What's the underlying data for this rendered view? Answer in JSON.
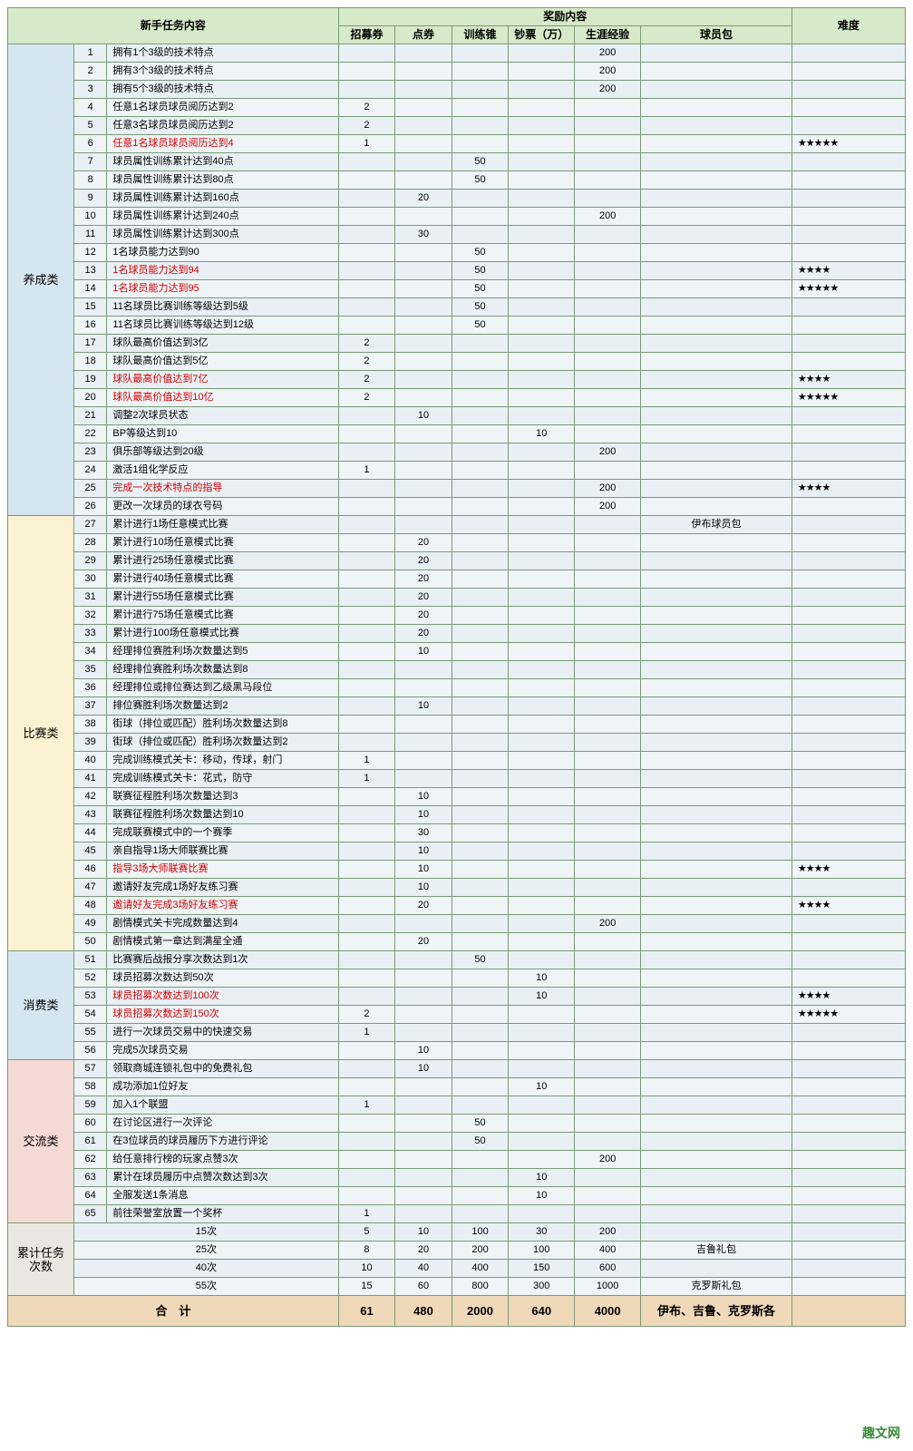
{
  "headers": {
    "task_content": "新手任务内容",
    "reward_content": "奖励内容",
    "difficulty": "难度",
    "cols": [
      "招募券",
      "点券",
      "训练锥",
      "钞票（万）",
      "生涯经验",
      "球员包"
    ]
  },
  "categories": [
    {
      "name": "养成类",
      "color": "cat-blue",
      "rows": [
        {
          "n": 1,
          "t": "拥有1个3级的技术特点",
          "v": [
            "",
            "",
            "",
            "",
            "200",
            ""
          ],
          "d": ""
        },
        {
          "n": 2,
          "t": "拥有3个3级的技术特点",
          "v": [
            "",
            "",
            "",
            "",
            "200",
            ""
          ],
          "d": ""
        },
        {
          "n": 3,
          "t": "拥有5个3级的技术特点",
          "v": [
            "",
            "",
            "",
            "",
            "200",
            ""
          ],
          "d": ""
        },
        {
          "n": 4,
          "t": "任意1名球员球员阅历达到2",
          "v": [
            "2",
            "",
            "",
            "",
            "",
            ""
          ],
          "d": ""
        },
        {
          "n": 5,
          "t": "任意3名球员球员阅历达到2",
          "v": [
            "2",
            "",
            "",
            "",
            "",
            ""
          ],
          "d": ""
        },
        {
          "n": 6,
          "t": "任意1名球员球员阅历达到4",
          "v": [
            "1",
            "",
            "",
            "",
            "",
            ""
          ],
          "d": "★★★★★",
          "red": true
        },
        {
          "n": 7,
          "t": "球员属性训练累计达到40点",
          "v": [
            "",
            "",
            "50",
            "",
            "",
            ""
          ],
          "d": ""
        },
        {
          "n": 8,
          "t": "球员属性训练累计达到80点",
          "v": [
            "",
            "",
            "50",
            "",
            "",
            ""
          ],
          "d": ""
        },
        {
          "n": 9,
          "t": "球员属性训练累计达到160点",
          "v": [
            "",
            "20",
            "",
            "",
            "",
            ""
          ],
          "d": ""
        },
        {
          "n": 10,
          "t": "球员属性训练累计达到240点",
          "v": [
            "",
            "",
            "",
            "",
            "200",
            ""
          ],
          "d": ""
        },
        {
          "n": 11,
          "t": "球员属性训练累计达到300点",
          "v": [
            "",
            "30",
            "",
            "",
            "",
            ""
          ],
          "d": ""
        },
        {
          "n": 12,
          "t": "1名球员能力达到90",
          "v": [
            "",
            "",
            "50",
            "",
            "",
            ""
          ],
          "d": ""
        },
        {
          "n": 13,
          "t": "1名球员能力达到94",
          "v": [
            "",
            "",
            "50",
            "",
            "",
            ""
          ],
          "d": "★★★★",
          "red": true
        },
        {
          "n": 14,
          "t": "1名球员能力达到95",
          "v": [
            "",
            "",
            "50",
            "",
            "",
            ""
          ],
          "d": "★★★★★",
          "red": true
        },
        {
          "n": 15,
          "t": "11名球员比赛训练等级达到5级",
          "v": [
            "",
            "",
            "50",
            "",
            "",
            ""
          ],
          "d": ""
        },
        {
          "n": 16,
          "t": "11名球员比赛训练等级达到12级",
          "v": [
            "",
            "",
            "50",
            "",
            "",
            ""
          ],
          "d": ""
        },
        {
          "n": 17,
          "t": "球队最高价值达到3亿",
          "v": [
            "2",
            "",
            "",
            "",
            "",
            ""
          ],
          "d": ""
        },
        {
          "n": 18,
          "t": "球队最高价值达到5亿",
          "v": [
            "2",
            "",
            "",
            "",
            "",
            ""
          ],
          "d": ""
        },
        {
          "n": 19,
          "t": "球队最高价值达到7亿",
          "v": [
            "2",
            "",
            "",
            "",
            "",
            ""
          ],
          "d": "★★★★",
          "red": true
        },
        {
          "n": 20,
          "t": "球队最高价值达到10亿",
          "v": [
            "2",
            "",
            "",
            "",
            "",
            ""
          ],
          "d": "★★★★★",
          "red": true
        },
        {
          "n": 21,
          "t": "调整2次球员状态",
          "v": [
            "",
            "10",
            "",
            "",
            "",
            ""
          ],
          "d": ""
        },
        {
          "n": 22,
          "t": "BP等级达到10",
          "v": [
            "",
            "",
            "",
            "10",
            "",
            ""
          ],
          "d": ""
        },
        {
          "n": 23,
          "t": "俱乐部等级达到20级",
          "v": [
            "",
            "",
            "",
            "",
            "200",
            ""
          ],
          "d": ""
        },
        {
          "n": 24,
          "t": "激活1组化学反应",
          "v": [
            "1",
            "",
            "",
            "",
            "",
            ""
          ],
          "d": ""
        },
        {
          "n": 25,
          "t": "完成一次技术特点的指导",
          "v": [
            "",
            "",
            "",
            "",
            "200",
            ""
          ],
          "d": "★★★★",
          "red": true
        },
        {
          "n": 26,
          "t": "更改一次球员的球衣号码",
          "v": [
            "",
            "",
            "",
            "",
            "200",
            ""
          ],
          "d": ""
        }
      ]
    },
    {
      "name": "比赛类",
      "color": "cat-yellow",
      "rows": [
        {
          "n": 27,
          "t": "累计进行1场任意模式比赛",
          "v": [
            "",
            "",
            "",
            "",
            "",
            "伊布球员包"
          ],
          "d": ""
        },
        {
          "n": 28,
          "t": "累计进行10场任意模式比赛",
          "v": [
            "",
            "20",
            "",
            "",
            "",
            ""
          ],
          "d": ""
        },
        {
          "n": 29,
          "t": "累计进行25场任意模式比赛",
          "v": [
            "",
            "20",
            "",
            "",
            "",
            ""
          ],
          "d": ""
        },
        {
          "n": 30,
          "t": "累计进行40场任意模式比赛",
          "v": [
            "",
            "20",
            "",
            "",
            "",
            ""
          ],
          "d": ""
        },
        {
          "n": 31,
          "t": "累计进行55场任意模式比赛",
          "v": [
            "",
            "20",
            "",
            "",
            "",
            ""
          ],
          "d": ""
        },
        {
          "n": 32,
          "t": "累计进行75场任意模式比赛",
          "v": [
            "",
            "20",
            "",
            "",
            "",
            ""
          ],
          "d": ""
        },
        {
          "n": 33,
          "t": "累计进行100场任意模式比赛",
          "v": [
            "",
            "20",
            "",
            "",
            "",
            ""
          ],
          "d": ""
        },
        {
          "n": 34,
          "t": "经理排位赛胜利场次数量达到5",
          "v": [
            "",
            "10",
            "",
            "",
            "",
            ""
          ],
          "d": ""
        },
        {
          "n": 35,
          "t": "经理排位赛胜利场次数量达到8",
          "v": [
            "",
            "",
            "",
            "",
            "",
            ""
          ],
          "d": ""
        },
        {
          "n": 36,
          "t": "经理排位或排位赛达到乙级黑马段位",
          "v": [
            "",
            "",
            "",
            "",
            "",
            ""
          ],
          "d": ""
        },
        {
          "n": 37,
          "t": "排位赛胜利场次数量达到2",
          "v": [
            "",
            "10",
            "",
            "",
            "",
            ""
          ],
          "d": ""
        },
        {
          "n": 38,
          "t": "街球（排位或匹配）胜利场次数量达到8",
          "v": [
            "",
            "",
            "",
            "",
            "",
            ""
          ],
          "d": ""
        },
        {
          "n": 39,
          "t": "街球（排位或匹配）胜利场次数量达到2",
          "v": [
            "",
            "",
            "",
            "",
            "",
            ""
          ],
          "d": ""
        },
        {
          "n": 40,
          "t": "完成训练模式关卡：移动，传球，射门",
          "v": [
            "1",
            "",
            "",
            "",
            "",
            ""
          ],
          "d": ""
        },
        {
          "n": 41,
          "t": "完成训练模式关卡：花式，防守",
          "v": [
            "1",
            "",
            "",
            "",
            "",
            ""
          ],
          "d": ""
        },
        {
          "n": 42,
          "t": "联赛征程胜利场次数量达到3",
          "v": [
            "",
            "10",
            "",
            "",
            "",
            ""
          ],
          "d": ""
        },
        {
          "n": 43,
          "t": "联赛征程胜利场次数量达到10",
          "v": [
            "",
            "10",
            "",
            "",
            "",
            ""
          ],
          "d": ""
        },
        {
          "n": 44,
          "t": "完成联赛模式中的一个赛季",
          "v": [
            "",
            "30",
            "",
            "",
            "",
            ""
          ],
          "d": ""
        },
        {
          "n": 45,
          "t": "亲自指导1场大师联赛比赛",
          "v": [
            "",
            "10",
            "",
            "",
            "",
            ""
          ],
          "d": ""
        },
        {
          "n": 46,
          "t": "指导3场大师联赛比赛",
          "v": [
            "",
            "10",
            "",
            "",
            "",
            ""
          ],
          "d": "★★★★",
          "red": true
        },
        {
          "n": 47,
          "t": "邀请好友完成1场好友练习赛",
          "v": [
            "",
            "10",
            "",
            "",
            "",
            ""
          ],
          "d": ""
        },
        {
          "n": 48,
          "t": "邀请好友完成3场好友练习赛",
          "v": [
            "",
            "20",
            "",
            "",
            "",
            ""
          ],
          "d": "★★★★",
          "red": true
        },
        {
          "n": 49,
          "t": "剧情模式关卡完成数量达到4",
          "v": [
            "",
            "",
            "",
            "",
            "200",
            ""
          ],
          "d": ""
        },
        {
          "n": 50,
          "t": "剧情模式第一章达到满星全通",
          "v": [
            "",
            "20",
            "",
            "",
            "",
            ""
          ],
          "d": ""
        }
      ]
    },
    {
      "name": "消费类",
      "color": "cat-blue",
      "rows": [
        {
          "n": 51,
          "t": "比赛赛后战报分享次数达到1次",
          "v": [
            "",
            "",
            "50",
            "",
            "",
            ""
          ],
          "d": ""
        },
        {
          "n": 52,
          "t": "球员招募次数达到50次",
          "v": [
            "",
            "",
            "",
            "10",
            "",
            ""
          ],
          "d": ""
        },
        {
          "n": 53,
          "t": "球员招募次数达到100次",
          "v": [
            "",
            "",
            "",
            "10",
            "",
            ""
          ],
          "d": "★★★★",
          "red": true
        },
        {
          "n": 54,
          "t": "球员招募次数达到150次",
          "v": [
            "2",
            "",
            "",
            "",
            "",
            ""
          ],
          "d": "★★★★★",
          "red": true
        },
        {
          "n": 55,
          "t": "进行一次球员交易中的快速交易",
          "v": [
            "1",
            "",
            "",
            "",
            "",
            ""
          ],
          "d": ""
        },
        {
          "n": 56,
          "t": "完成5次球员交易",
          "v": [
            "",
            "10",
            "",
            "",
            "",
            ""
          ],
          "d": ""
        }
      ]
    },
    {
      "name": "交流类",
      "color": "cat-pink",
      "rows": [
        {
          "n": 57,
          "t": "领取商城连锁礼包中的免费礼包",
          "v": [
            "",
            "10",
            "",
            "",
            "",
            ""
          ],
          "d": ""
        },
        {
          "n": 58,
          "t": "成功添加1位好友",
          "v": [
            "",
            "",
            "",
            "10",
            "",
            ""
          ],
          "d": ""
        },
        {
          "n": 59,
          "t": "加入1个联盟",
          "v": [
            "1",
            "",
            "",
            "",
            "",
            ""
          ],
          "d": ""
        },
        {
          "n": 60,
          "t": "在讨论区进行一次评论",
          "v": [
            "",
            "",
            "50",
            "",
            "",
            ""
          ],
          "d": ""
        },
        {
          "n": 61,
          "t": "在3位球员的球员履历下方进行评论",
          "v": [
            "",
            "",
            "50",
            "",
            "",
            ""
          ],
          "d": ""
        },
        {
          "n": 62,
          "t": "给任意排行榜的玩家点赞3次",
          "v": [
            "",
            "",
            "",
            "",
            "200",
            ""
          ],
          "d": ""
        },
        {
          "n": 63,
          "t": "累计在球员履历中点赞次数达到3次",
          "v": [
            "",
            "",
            "",
            "10",
            "",
            ""
          ],
          "d": ""
        },
        {
          "n": 64,
          "t": "全服发送1条消息",
          "v": [
            "",
            "",
            "",
            "10",
            "",
            ""
          ],
          "d": ""
        },
        {
          "n": 65,
          "t": "前往荣誉室放置一个奖杯",
          "v": [
            "1",
            "",
            "",
            "",
            "",
            ""
          ],
          "d": ""
        }
      ]
    },
    {
      "name": "累计任务次数",
      "color": "cat-gray",
      "summary": true,
      "rows": [
        {
          "t": "15次",
          "v": [
            "5",
            "10",
            "100",
            "30",
            "200",
            ""
          ],
          "d": ""
        },
        {
          "t": "25次",
          "v": [
            "8",
            "20",
            "200",
            "100",
            "400",
            "吉鲁礼包"
          ],
          "d": ""
        },
        {
          "t": "40次",
          "v": [
            "10",
            "40",
            "400",
            "150",
            "600",
            ""
          ],
          "d": ""
        },
        {
          "t": "55次",
          "v": [
            "15",
            "60",
            "800",
            "300",
            "1000",
            "克罗斯礼包"
          ],
          "d": ""
        }
      ]
    }
  ],
  "total": {
    "label": "合　计",
    "v": [
      "61",
      "480",
      "2000",
      "640",
      "4000",
      "伊布、吉鲁、克罗斯各"
    ]
  },
  "watermark": "趣文网"
}
